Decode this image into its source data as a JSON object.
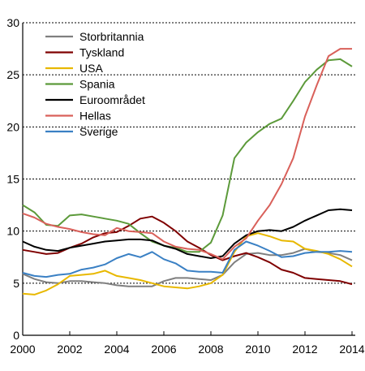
{
  "chart_data": {
    "type": "line",
    "xlim": [
      2000,
      2014
    ],
    "ylim": [
      0,
      30
    ],
    "grid": "horizontal dotted",
    "legend_position": "top-left",
    "x_ticks": [
      "2000",
      "2002",
      "2004",
      "2006",
      "2008",
      "2010",
      "2012",
      "2014"
    ],
    "y_ticks": [
      "0",
      "5",
      "10",
      "15",
      "20",
      "25",
      "30"
    ],
    "series": [
      {
        "name": "Storbritannia",
        "color": "#7f7f7f",
        "points": [
          [
            2000,
            5.9
          ],
          [
            2000.5,
            5.4
          ],
          [
            2001,
            5.1
          ],
          [
            2001.5,
            5.0
          ],
          [
            2002,
            5.2
          ],
          [
            2002.5,
            5.2
          ],
          [
            2003,
            5.1
          ],
          [
            2003.5,
            5.0
          ],
          [
            2004,
            4.8
          ],
          [
            2004.5,
            4.7
          ],
          [
            2005,
            4.7
          ],
          [
            2005.5,
            4.7
          ],
          [
            2006,
            5.2
          ],
          [
            2006.5,
            5.5
          ],
          [
            2007,
            5.5
          ],
          [
            2007.5,
            5.4
          ],
          [
            2008,
            5.3
          ],
          [
            2008.5,
            5.8
          ],
          [
            2009,
            7.0
          ],
          [
            2009.5,
            7.8
          ],
          [
            2010,
            7.9
          ],
          [
            2010.5,
            7.7
          ],
          [
            2011,
            7.7
          ],
          [
            2011.5,
            7.9
          ],
          [
            2012,
            8.3
          ],
          [
            2012.5,
            8.0
          ],
          [
            2013,
            7.9
          ],
          [
            2013.5,
            7.7
          ],
          [
            2014,
            7.2
          ]
        ]
      },
      {
        "name": "Tyskland",
        "color": "#7f0000",
        "points": [
          [
            2000,
            8.2
          ],
          [
            2000.5,
            8.0
          ],
          [
            2001,
            7.8
          ],
          [
            2001.5,
            7.9
          ],
          [
            2002,
            8.4
          ],
          [
            2002.5,
            8.8
          ],
          [
            2003,
            9.4
          ],
          [
            2003.5,
            9.8
          ],
          [
            2004,
            9.9
          ],
          [
            2004.5,
            10.5
          ],
          [
            2005,
            11.2
          ],
          [
            2005.5,
            11.4
          ],
          [
            2006,
            10.8
          ],
          [
            2006.5,
            10.0
          ],
          [
            2007,
            9.0
          ],
          [
            2007.5,
            8.4
          ],
          [
            2008,
            7.7
          ],
          [
            2008.5,
            7.2
          ],
          [
            2009,
            7.6
          ],
          [
            2009.5,
            7.9
          ],
          [
            2010,
            7.5
          ],
          [
            2010.5,
            7.0
          ],
          [
            2011,
            6.3
          ],
          [
            2011.5,
            6.0
          ],
          [
            2012,
            5.5
          ],
          [
            2012.5,
            5.4
          ],
          [
            2013,
            5.3
          ],
          [
            2013.5,
            5.2
          ],
          [
            2014,
            4.9
          ]
        ]
      },
      {
        "name": "USA",
        "color": "#e8b800",
        "points": [
          [
            2000,
            4.0
          ],
          [
            2000.5,
            3.9
          ],
          [
            2001,
            4.3
          ],
          [
            2001.5,
            4.9
          ],
          [
            2002,
            5.7
          ],
          [
            2002.5,
            5.8
          ],
          [
            2003,
            5.9
          ],
          [
            2003.5,
            6.2
          ],
          [
            2004,
            5.7
          ],
          [
            2004.5,
            5.5
          ],
          [
            2005,
            5.3
          ],
          [
            2005.5,
            5.0
          ],
          [
            2006,
            4.7
          ],
          [
            2006.5,
            4.6
          ],
          [
            2007,
            4.5
          ],
          [
            2007.5,
            4.7
          ],
          [
            2008,
            5.0
          ],
          [
            2008.5,
            5.8
          ],
          [
            2009,
            8.0
          ],
          [
            2009.5,
            9.5
          ],
          [
            2010,
            9.8
          ],
          [
            2010.5,
            9.5
          ],
          [
            2011,
            9.1
          ],
          [
            2011.5,
            9.0
          ],
          [
            2012,
            8.3
          ],
          [
            2012.5,
            8.1
          ],
          [
            2013,
            7.8
          ],
          [
            2013.5,
            7.3
          ],
          [
            2014,
            6.6
          ]
        ]
      },
      {
        "name": "Spania",
        "color": "#5c9a3a",
        "points": [
          [
            2000,
            12.5
          ],
          [
            2000.5,
            11.8
          ],
          [
            2001,
            10.6
          ],
          [
            2001.5,
            10.5
          ],
          [
            2002,
            11.5
          ],
          [
            2002.5,
            11.6
          ],
          [
            2003,
            11.4
          ],
          [
            2003.5,
            11.2
          ],
          [
            2004,
            11.0
          ],
          [
            2004.5,
            10.7
          ],
          [
            2005,
            9.8
          ],
          [
            2005.5,
            9.0
          ],
          [
            2006,
            8.6
          ],
          [
            2006.5,
            8.4
          ],
          [
            2007,
            8.0
          ],
          [
            2007.5,
            8.0
          ],
          [
            2008,
            8.9
          ],
          [
            2008.5,
            11.5
          ],
          [
            2009,
            17.0
          ],
          [
            2009.5,
            18.5
          ],
          [
            2010,
            19.5
          ],
          [
            2010.5,
            20.3
          ],
          [
            2011,
            20.8
          ],
          [
            2011.5,
            22.5
          ],
          [
            2012,
            24.3
          ],
          [
            2012.5,
            25.5
          ],
          [
            2013,
            26.4
          ],
          [
            2013.5,
            26.5
          ],
          [
            2014,
            25.8
          ]
        ]
      },
      {
        "name": "Euroområdet",
        "color": "#000000",
        "points": [
          [
            2000,
            9.0
          ],
          [
            2000.5,
            8.5
          ],
          [
            2001,
            8.2
          ],
          [
            2001.5,
            8.1
          ],
          [
            2002,
            8.4
          ],
          [
            2002.5,
            8.6
          ],
          [
            2003,
            8.8
          ],
          [
            2003.5,
            9.0
          ],
          [
            2004,
            9.1
          ],
          [
            2004.5,
            9.2
          ],
          [
            2005,
            9.2
          ],
          [
            2005.5,
            9.1
          ],
          [
            2006,
            8.6
          ],
          [
            2006.5,
            8.3
          ],
          [
            2007,
            7.8
          ],
          [
            2007.5,
            7.6
          ],
          [
            2008,
            7.4
          ],
          [
            2008.5,
            7.6
          ],
          [
            2009,
            8.8
          ],
          [
            2009.5,
            9.6
          ],
          [
            2010,
            10.0
          ],
          [
            2010.5,
            10.1
          ],
          [
            2011,
            10.0
          ],
          [
            2011.5,
            10.4
          ],
          [
            2012,
            11.0
          ],
          [
            2012.5,
            11.5
          ],
          [
            2013,
            12.0
          ],
          [
            2013.5,
            12.1
          ],
          [
            2014,
            12.0
          ]
        ]
      },
      {
        "name": "Hellas",
        "color": "#d9605a",
        "points": [
          [
            2000,
            11.7
          ],
          [
            2000.5,
            11.3
          ],
          [
            2001,
            10.7
          ],
          [
            2001.5,
            10.4
          ],
          [
            2002,
            10.2
          ],
          [
            2002.5,
            9.9
          ],
          [
            2003,
            9.7
          ],
          [
            2003.5,
            9.6
          ],
          [
            2004,
            10.3
          ],
          [
            2004.5,
            10.0
          ],
          [
            2005,
            9.9
          ],
          [
            2005.5,
            9.8
          ],
          [
            2006,
            9.0
          ],
          [
            2006.5,
            8.5
          ],
          [
            2007,
            8.3
          ],
          [
            2007.5,
            8.2
          ],
          [
            2008,
            7.8
          ],
          [
            2008.5,
            7.3
          ],
          [
            2009,
            8.5
          ],
          [
            2009.5,
            9.3
          ],
          [
            2010,
            11.0
          ],
          [
            2010.5,
            12.5
          ],
          [
            2011,
            14.5
          ],
          [
            2011.5,
            17.0
          ],
          [
            2012,
            21.0
          ],
          [
            2012.5,
            24.0
          ],
          [
            2013,
            26.8
          ],
          [
            2013.5,
            27.5
          ],
          [
            2014,
            27.5
          ]
        ]
      },
      {
        "name": "Sverige",
        "color": "#3a80c4",
        "points": [
          [
            2000,
            6.0
          ],
          [
            2000.5,
            5.7
          ],
          [
            2001,
            5.6
          ],
          [
            2001.5,
            5.8
          ],
          [
            2002,
            5.9
          ],
          [
            2002.5,
            6.3
          ],
          [
            2003,
            6.5
          ],
          [
            2003.5,
            6.8
          ],
          [
            2004,
            7.4
          ],
          [
            2004.5,
            7.8
          ],
          [
            2005,
            7.5
          ],
          [
            2005.5,
            8.0
          ],
          [
            2006,
            7.3
          ],
          [
            2006.5,
            6.9
          ],
          [
            2007,
            6.2
          ],
          [
            2007.5,
            6.1
          ],
          [
            2008,
            6.1
          ],
          [
            2008.5,
            6.0
          ],
          [
            2009,
            8.2
          ],
          [
            2009.5,
            9.0
          ],
          [
            2010,
            8.6
          ],
          [
            2010.5,
            8.1
          ],
          [
            2011,
            7.5
          ],
          [
            2011.5,
            7.6
          ],
          [
            2012,
            7.9
          ],
          [
            2012.5,
            8.0
          ],
          [
            2013,
            8.0
          ],
          [
            2013.5,
            8.1
          ],
          [
            2014,
            8.0
          ]
        ]
      }
    ]
  }
}
